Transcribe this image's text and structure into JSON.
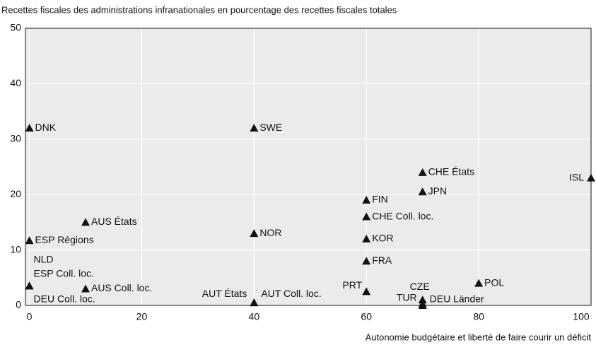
{
  "chart_data": {
    "type": "scatter",
    "title": "Recettes fiscales des administrations infranationales en pourcentage des recettes fiscales totales",
    "xlabel": "Autonomie budgétaire et liberté de faire courir un déficit",
    "xlim": [
      -0.7,
      100
    ],
    "ylim": [
      0,
      50
    ],
    "xticks": [
      0,
      20,
      40,
      60,
      80,
      100
    ],
    "yticks": [
      0,
      10,
      20,
      30,
      40,
      50
    ],
    "grid": true,
    "series": [
      {
        "color": "#111111",
        "labels": [
          "DNK",
          "SWE",
          "CHE États",
          "ISL",
          "JPN",
          "FIN",
          "CHE Coll. loc.",
          "AUS États",
          "NOR",
          "KOR",
          "ESP Régions",
          "FRA",
          "NLD",
          "ESP Coll. loc.",
          "DEU Coll. loc.",
          "POL",
          "AUS Coll. loc.",
          "PRT",
          "AUT États",
          "AUT Coll. loc.",
          "CZE",
          "TUR",
          "DEU Länder"
        ],
        "x": [
          0,
          40,
          70,
          100,
          70,
          60,
          60,
          10,
          40,
          60,
          0,
          60,
          0,
          0,
          0,
          80,
          10,
          60,
          40,
          40,
          70,
          70,
          70
        ],
        "values": [
          32,
          32,
          24,
          23,
          20.5,
          19,
          16,
          15,
          13,
          12,
          11.7,
          8,
          3.5,
          3.5,
          3.5,
          4,
          3,
          2.5,
          0.5,
          0.5,
          1,
          0.3,
          0
        ]
      }
    ]
  }
}
